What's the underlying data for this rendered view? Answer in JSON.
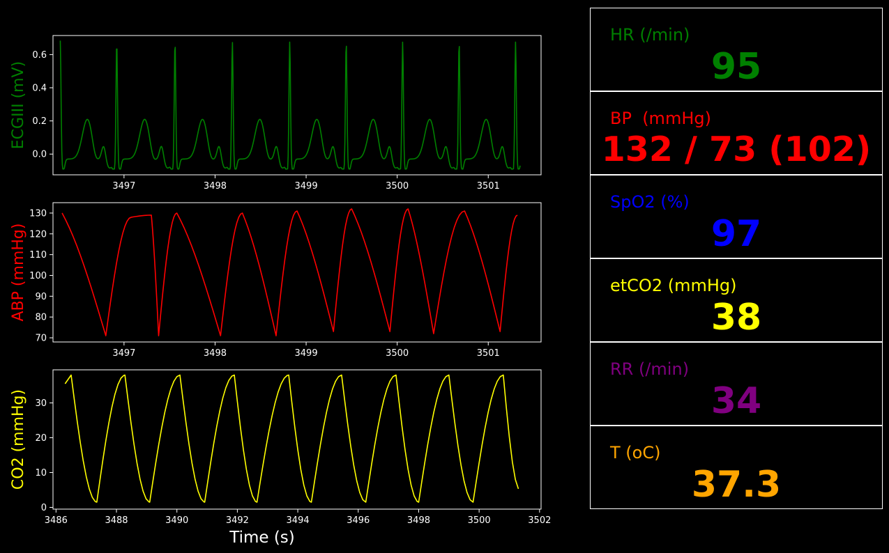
{
  "colors": {
    "background": "#000000",
    "axis": "#ffffff",
    "ecg": "#008000",
    "abp": "#ff0000",
    "co2": "#ffff00",
    "spo2": "#0000ff",
    "rr": "#800080",
    "temp": "#ffa500"
  },
  "vitals": {
    "hr": {
      "label": "HR (/min)",
      "value": "95"
    },
    "bp": {
      "label": "BP  (mmHg)",
      "value": "132 / 73 (102)"
    },
    "spo2": {
      "label": "SpO2 (%)",
      "value": "97"
    },
    "etco2": {
      "label": "etCO2 (mmHg)",
      "value": "38"
    },
    "rr": {
      "label": "RR (/min)",
      "value": "34"
    },
    "temp": {
      "label": "T (oC)",
      "value": "37.3"
    }
  },
  "chart_data": [
    {
      "type": "line",
      "ylabel": "ECGIII (mV)",
      "xlim": [
        3496.22,
        3501.58
      ],
      "ylim": [
        -0.125,
        0.715
      ],
      "xticks": [
        3497,
        3498,
        3499,
        3500,
        3501
      ],
      "yticks": [
        0.0,
        0.2,
        0.4,
        0.6
      ],
      "ytick_labels": [
        "0.0",
        "0.2",
        "0.4",
        "0.6"
      ],
      "series": [
        {
          "color": "#008000",
          "x_start": 3496.3,
          "x_end": 3501.35,
          "beat_times": [
            3496.3,
            3496.92,
            3497.56,
            3498.19,
            3498.82,
            3499.44,
            3500.06,
            3500.68,
            3501.3
          ],
          "r_peak": 0.67,
          "t_peak": 0.21,
          "baseline": -0.03,
          "min": -0.09
        }
      ]
    },
    {
      "type": "line",
      "ylabel": "ABP (mmHg)",
      "xlim": [
        3496.22,
        3501.58
      ],
      "ylim": [
        68,
        135
      ],
      "xticks": [
        3497,
        3498,
        3499,
        3500,
        3501
      ],
      "yticks": [
        70,
        80,
        90,
        100,
        110,
        120,
        130
      ],
      "series": [
        {
          "color": "#ff0000",
          "points": [
            [
              3496.32,
              130
            ],
            [
              3496.8,
              71
            ],
            [
              3497.08,
              128
            ],
            [
              3497.3,
              129
            ],
            [
              3497.38,
              71
            ],
            [
              3497.58,
              130
            ],
            [
              3498.06,
              71
            ],
            [
              3498.3,
              130
            ],
            [
              3498.67,
              71
            ],
            [
              3498.9,
              131
            ],
            [
              3499.3,
              73
            ],
            [
              3499.5,
              132
            ],
            [
              3499.92,
              73
            ],
            [
              3500.12,
              132
            ],
            [
              3500.4,
              72
            ],
            [
              3500.74,
              131
            ],
            [
              3501.13,
              73
            ],
            [
              3501.32,
              129
            ]
          ]
        }
      ]
    },
    {
      "type": "line",
      "ylabel": "CO2 (mmHg)",
      "xlabel": "Time (s)",
      "xlim": [
        3485.9,
        3502.05
      ],
      "ylim": [
        -0.5,
        39.5
      ],
      "xticks": [
        3486,
        3488,
        3490,
        3492,
        3494,
        3496,
        3498,
        3500,
        3502
      ],
      "yticks": [
        0,
        10,
        20,
        30
      ],
      "series": [
        {
          "color": "#ffff00",
          "x_start": 3486.3,
          "x_end": 3501.35,
          "max_times": [
            3486.5,
            3488.28,
            3490.1,
            3491.9,
            3493.7,
            3495.45,
            3497.25,
            3499.0,
            3500.8
          ],
          "min_times": [
            3487.35,
            3489.1,
            3490.92,
            3492.65,
            3494.45,
            3496.25,
            3498.0,
            3499.8
          ],
          "max": 38,
          "min": 1.5,
          "end_value": 5
        }
      ]
    }
  ]
}
